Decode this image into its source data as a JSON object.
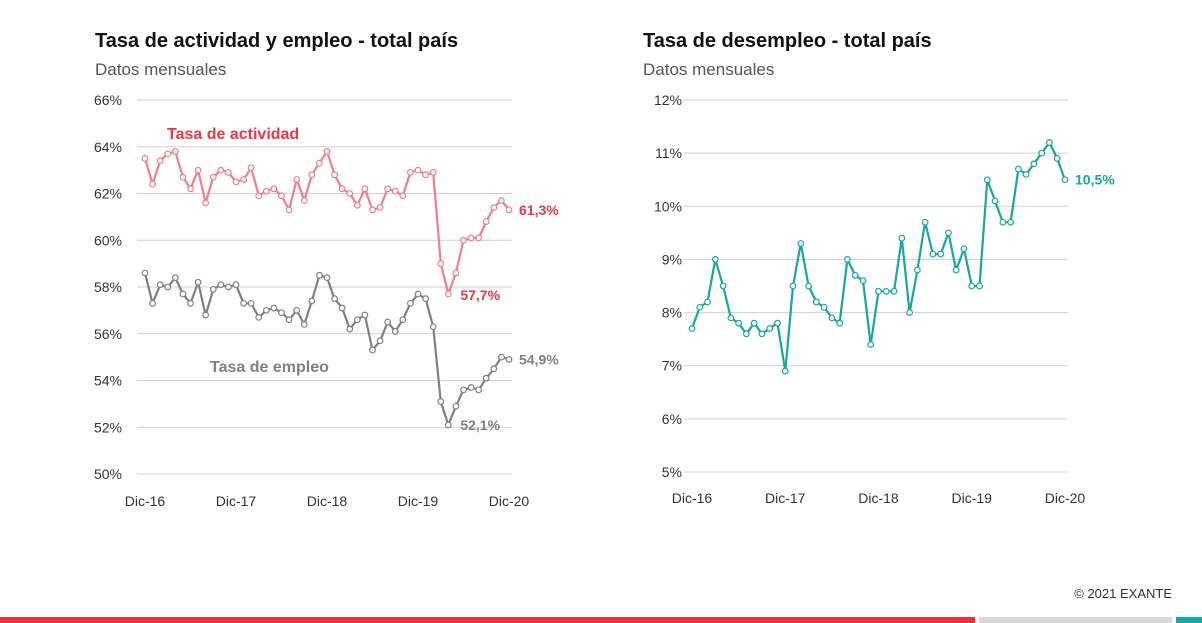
{
  "chart_data": [
    {
      "type": "line",
      "title": "Tasa de actividad y empleo - total país",
      "subtitle": "Datos mensuales",
      "ylim": [
        50,
        66
      ],
      "yticks": [
        "50%",
        "52%",
        "54%",
        "56%",
        "58%",
        "60%",
        "62%",
        "64%",
        "66%"
      ],
      "xticks": [
        "Dic-16",
        "Dic-17",
        "Dic-18",
        "Dic-19",
        "Dic-20"
      ],
      "grid": true,
      "series": [
        {
          "name": "Tasa de actividad",
          "color": "#f07f86",
          "label_color": "#e63946",
          "end_label": "61,3%",
          "min_label": "57,7%",
          "values": [
            63.5,
            62.4,
            63.4,
            63.7,
            63.8,
            62.7,
            62.2,
            63.0,
            61.6,
            62.7,
            63.0,
            62.9,
            62.5,
            62.6,
            63.1,
            61.9,
            62.1,
            62.2,
            61.9,
            61.3,
            62.6,
            61.7,
            62.8,
            63.3,
            63.8,
            62.8,
            62.2,
            62.0,
            61.5,
            62.2,
            61.3,
            61.4,
            62.2,
            62.1,
            61.9,
            62.9,
            63.0,
            62.8,
            62.9,
            59.0,
            57.7,
            58.6,
            60.0,
            60.1,
            60.1,
            60.8,
            61.4,
            61.7,
            61.3
          ]
        },
        {
          "name": "Tasa de empleo",
          "color": "#808080",
          "label_color": "#808080",
          "end_label": "54,9%",
          "min_label": "52,1%",
          "values": [
            58.6,
            57.3,
            58.1,
            58.0,
            58.4,
            57.7,
            57.3,
            58.2,
            56.8,
            57.9,
            58.1,
            58.0,
            58.1,
            57.3,
            57.3,
            56.7,
            57.0,
            57.1,
            56.9,
            56.6,
            57.0,
            56.4,
            57.4,
            58.5,
            58.4,
            57.5,
            57.1,
            56.2,
            56.6,
            56.8,
            55.3,
            55.7,
            56.5,
            56.1,
            56.6,
            57.3,
            57.7,
            57.5,
            56.3,
            53.1,
            52.1,
            52.9,
            53.6,
            53.7,
            53.6,
            54.1,
            54.5,
            55.0,
            54.9
          ]
        }
      ]
    },
    {
      "type": "line",
      "title": "Tasa de desempleo - total país",
      "subtitle": "Datos mensuales",
      "ylim": [
        5,
        12
      ],
      "yticks": [
        "5%",
        "6%",
        "7%",
        "8%",
        "9%",
        "10%",
        "11%",
        "12%"
      ],
      "xticks": [
        "Dic-16",
        "Dic-17",
        "Dic-18",
        "Dic-19",
        "Dic-20"
      ],
      "grid": true,
      "series": [
        {
          "name": "",
          "color": "#1aa6a0",
          "label_color": "#1aa6a0",
          "end_label": "10,5%",
          "values": [
            7.7,
            8.1,
            8.2,
            9.0,
            8.5,
            7.9,
            7.8,
            7.6,
            7.8,
            7.6,
            7.7,
            7.8,
            6.9,
            8.5,
            9.3,
            8.5,
            8.2,
            8.1,
            7.9,
            7.8,
            9.0,
            8.7,
            8.6,
            7.4,
            8.4,
            8.4,
            8.4,
            9.4,
            8.0,
            8.8,
            9.7,
            9.1,
            9.1,
            9.5,
            8.8,
            9.2,
            8.5,
            8.5,
            10.5,
            10.1,
            9.7,
            9.7,
            10.7,
            10.6,
            10.8,
            11.0,
            11.2,
            10.9,
            10.5
          ]
        }
      ]
    }
  ],
  "footer": {
    "copyright": "© 2021 EXANTE",
    "bar_colors": [
      "#e8323c",
      "#d9d9d9",
      "#1aa6a0"
    ]
  }
}
